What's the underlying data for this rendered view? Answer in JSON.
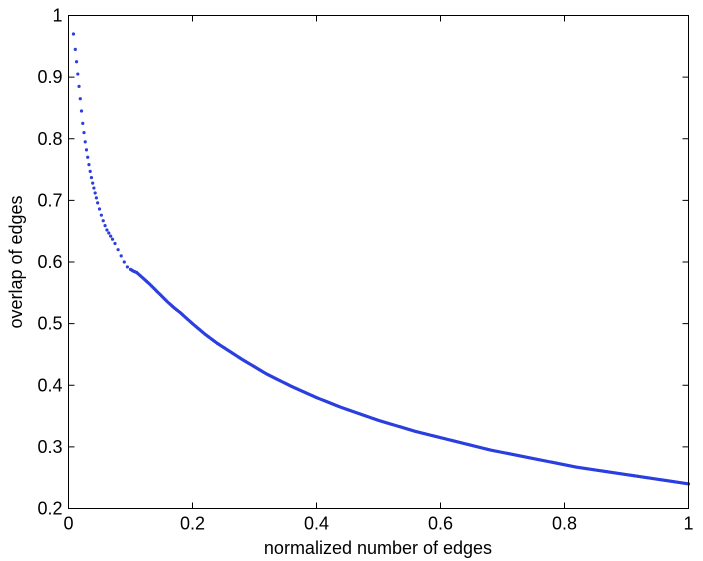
{
  "chart_data": {
    "type": "scatter",
    "title": "",
    "xlabel": "normalized number of edges",
    "ylabel": "overlap of edges",
    "xlim": [
      0,
      1
    ],
    "ylim": [
      0.2,
      1
    ],
    "xticks": [
      0,
      0.2,
      0.4,
      0.6,
      0.8,
      1
    ],
    "xtick_labels": [
      "0",
      "0.2",
      "0.4",
      "0.6",
      "0.8",
      "1"
    ],
    "yticks": [
      0.2,
      0.3,
      0.4,
      0.5,
      0.6,
      0.7,
      0.8,
      0.9,
      1
    ],
    "ytick_labels": [
      "0.2",
      "0.3",
      "0.4",
      "0.5",
      "0.6",
      "0.7",
      "0.8",
      "0.9",
      "1"
    ],
    "grid": false,
    "marker_color": "#2b3fe0",
    "series": [
      {
        "x": [
          0.008,
          0.011,
          0.013,
          0.015,
          0.017,
          0.019,
          0.021,
          0.023,
          0.025,
          0.027,
          0.029,
          0.031,
          0.033,
          0.035,
          0.037,
          0.039,
          0.041,
          0.043,
          0.045,
          0.047,
          0.05,
          0.053,
          0.056,
          0.059,
          0.062,
          0.065,
          0.068,
          0.071,
          0.075,
          0.08,
          0.085,
          0.09,
          0.095,
          0.1,
          0.105,
          0.11,
          0.12,
          0.13,
          0.14,
          0.15,
          0.16,
          0.17,
          0.18,
          0.2,
          0.22,
          0.24,
          0.26,
          0.28,
          0.3,
          0.32,
          0.34,
          0.36,
          0.38,
          0.4,
          0.42,
          0.44,
          0.46,
          0.48,
          0.5,
          0.52,
          0.54,
          0.56,
          0.58,
          0.6,
          0.62,
          0.64,
          0.66,
          0.68,
          0.7,
          0.72,
          0.74,
          0.76,
          0.78,
          0.8,
          0.82,
          0.84,
          0.86,
          0.88,
          0.9,
          0.92,
          0.94,
          0.96,
          0.98,
          1.0
        ],
        "y": [
          0.97,
          0.945,
          0.925,
          0.905,
          0.885,
          0.865,
          0.845,
          0.825,
          0.81,
          0.795,
          0.782,
          0.77,
          0.758,
          0.747,
          0.737,
          0.728,
          0.72,
          0.712,
          0.704,
          0.696,
          0.686,
          0.676,
          0.667,
          0.659,
          0.652,
          0.647,
          0.642,
          0.637,
          0.63,
          0.62,
          0.61,
          0.6,
          0.592,
          0.588,
          0.585,
          0.583,
          0.574,
          0.565,
          0.555,
          0.545,
          0.535,
          0.526,
          0.518,
          0.5,
          0.483,
          0.468,
          0.455,
          0.442,
          0.43,
          0.418,
          0.408,
          0.398,
          0.389,
          0.38,
          0.372,
          0.364,
          0.357,
          0.35,
          0.343,
          0.337,
          0.331,
          0.325,
          0.32,
          0.315,
          0.31,
          0.305,
          0.3,
          0.295,
          0.291,
          0.287,
          0.283,
          0.279,
          0.275,
          0.271,
          0.267,
          0.264,
          0.261,
          0.258,
          0.255,
          0.252,
          0.249,
          0.246,
          0.243,
          0.24
        ]
      }
    ]
  }
}
